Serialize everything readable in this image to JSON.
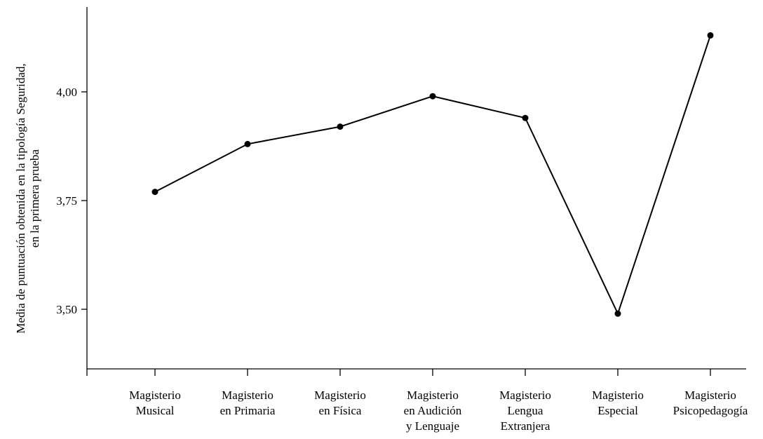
{
  "chart_data": {
    "type": "line",
    "categories": [
      [
        "Magisterio",
        "Musical"
      ],
      [
        "Magisterio",
        "en Primaria"
      ],
      [
        "Magisterio",
        "en Física"
      ],
      [
        "Magisterio",
        "en Audición",
        "y Lenguaje"
      ],
      [
        "Magisterio",
        "Lengua",
        "Extranjera"
      ],
      [
        "Magisterio",
        "Especial"
      ],
      [
        "Magisterio",
        "Psicopedagogía"
      ]
    ],
    "values": [
      3.77,
      3.88,
      3.92,
      3.99,
      3.94,
      3.49,
      4.13
    ],
    "yticks": [
      "3,50",
      "3,75",
      "4,00"
    ],
    "ytick_values": [
      3.5,
      3.75,
      4.0
    ],
    "ylim": [
      3.36,
      4.2
    ],
    "ylabel": [
      "Media de puntuación obtenida en la tipología Seguridad,",
      "en la primera prueba"
    ],
    "title": "",
    "xlabel": "",
    "grid": false,
    "colors": {
      "line": "#000000",
      "marker": "#000000"
    }
  }
}
